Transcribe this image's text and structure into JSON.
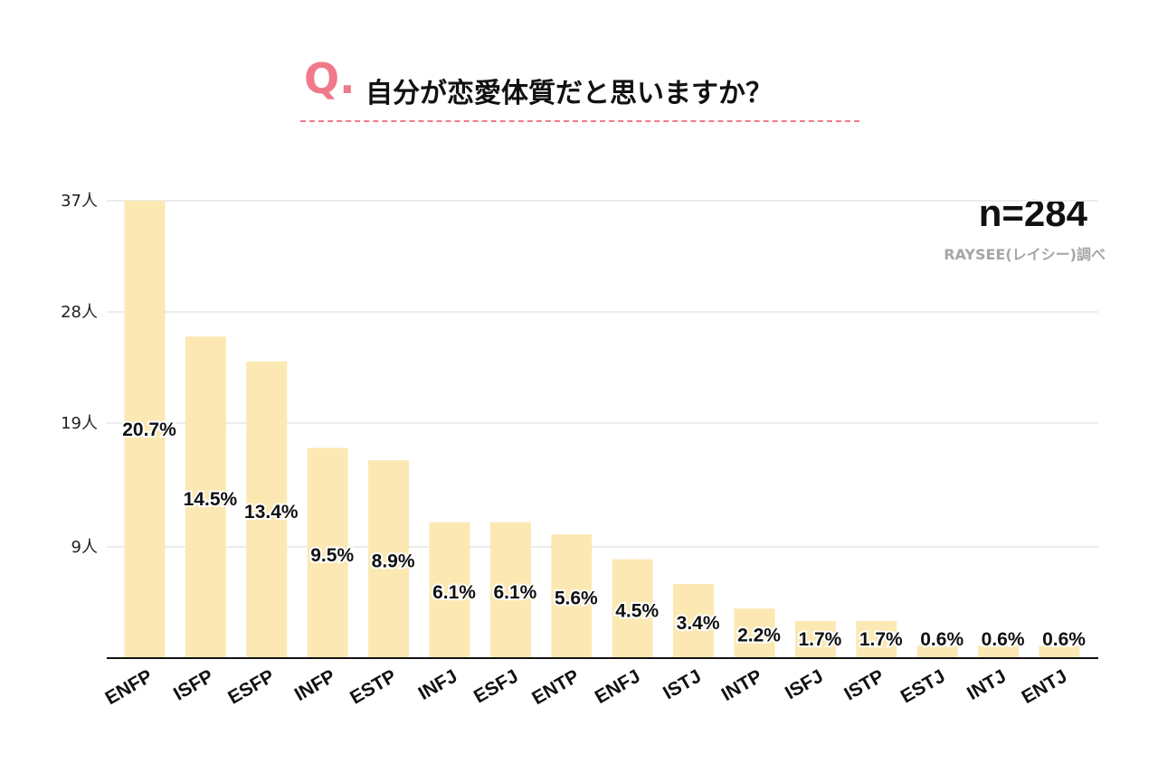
{
  "title": {
    "q_mark": "Q.",
    "text": "自分が恋愛体質だと思いますか？"
  },
  "sample_size": "n=284",
  "source": "RAYSEE(レイシー)調べ",
  "colors": {
    "bar": "#fce8b2",
    "accent": "#f07a8a",
    "gridline": "#ececec",
    "axis": "#111111"
  },
  "chart_data": {
    "type": "bar",
    "title": "自分が恋愛体質だと思いますか？",
    "xlabel": "",
    "ylabel": "",
    "categories": [
      "ENFP",
      "ISFP",
      "ESFP",
      "INFP",
      "ESTP",
      "INFJ",
      "ESFJ",
      "ENTP",
      "ENFJ",
      "ISTJ",
      "INTP",
      "ISFJ",
      "ISTP",
      "ESTJ",
      "INTJ",
      "ENTJ"
    ],
    "values": [
      37,
      26,
      24,
      17,
      16,
      11,
      11,
      10,
      8,
      6,
      4,
      3,
      3,
      1,
      1,
      1
    ],
    "data_labels": [
      "20.7%",
      "14.5%",
      "13.4%",
      "9.5%",
      "8.9%",
      "6.1%",
      "6.1%",
      "5.6%",
      "4.5%",
      "3.4%",
      "2.2%",
      "1.7%",
      "1.7%",
      "0.6%",
      "0.6%",
      "0.6%"
    ],
    "yticks": [
      {
        "value": 9,
        "label": "9人"
      },
      {
        "value": 19,
        "label": "19人"
      },
      {
        "value": 28,
        "label": "28人"
      },
      {
        "value": 37,
        "label": "37人"
      }
    ],
    "ylim": [
      0,
      37
    ],
    "grid": true,
    "legend": "none"
  }
}
